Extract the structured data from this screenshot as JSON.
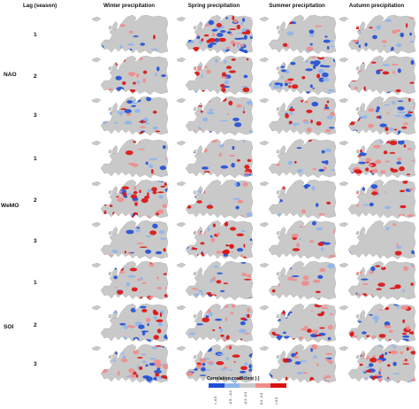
{
  "lag_header": "Lag (season)",
  "columns": [
    "Winter precipitation",
    "Spring precipitation",
    "Summer precipitation",
    "Autumn precipitation"
  ],
  "groups": [
    {
      "label": "NAO",
      "lags": [
        "1",
        "2",
        "3"
      ]
    },
    {
      "label": "WeMO",
      "lags": [
        "1",
        "2",
        "3"
      ]
    },
    {
      "label": "SOI",
      "lags": [
        "1",
        "2",
        "3"
      ]
    }
  ],
  "legend": {
    "title": "Correlation coefficient [-]",
    "ticks": [
      "< -0.5",
      "-0.5 - -0.3",
      "-0.3 - 0.3",
      "0.3 - 0.5",
      "> 0.5"
    ]
  },
  "colors": {
    "land": "#c9c9c9",
    "strong_negative": "#1f4fd6",
    "moderate_negative": "#8fb4ec",
    "neutral": "#c9c9c9",
    "moderate_positive": "#f08c8c",
    "strong_positive": "#dd1111"
  },
  "maps": [
    [
      {
        "neg": 10,
        "pos": 6
      },
      {
        "neg": 38,
        "pos": 28
      },
      {
        "neg": 14,
        "pos": 6
      },
      {
        "neg": 18,
        "pos": 10
      }
    ],
    [
      {
        "neg": 8,
        "pos": 12
      },
      {
        "neg": 14,
        "pos": 16
      },
      {
        "neg": 36,
        "pos": 10
      },
      {
        "neg": 6,
        "pos": 14
      }
    ],
    [
      {
        "neg": 26,
        "pos": 8
      },
      {
        "neg": 16,
        "pos": 12
      },
      {
        "neg": 14,
        "pos": 18
      },
      {
        "neg": 30,
        "pos": 18
      }
    ],
    [
      {
        "neg": 6,
        "pos": 10
      },
      {
        "neg": 14,
        "pos": 12
      },
      {
        "neg": 10,
        "pos": 6
      },
      {
        "neg": 10,
        "pos": 40
      }
    ],
    [
      {
        "neg": 12,
        "pos": 36
      },
      {
        "neg": 10,
        "pos": 8
      },
      {
        "neg": 8,
        "pos": 6
      },
      {
        "neg": 10,
        "pos": 14
      }
    ],
    [
      {
        "neg": 18,
        "pos": 8
      },
      {
        "neg": 14,
        "pos": 32
      },
      {
        "neg": 10,
        "pos": 10
      },
      {
        "neg": 4,
        "pos": 4
      }
    ],
    [
      {
        "neg": 12,
        "pos": 18
      },
      {
        "neg": 12,
        "pos": 14
      },
      {
        "neg": 8,
        "pos": 14
      },
      {
        "neg": 10,
        "pos": 20
      }
    ],
    [
      {
        "neg": 24,
        "pos": 14
      },
      {
        "neg": 16,
        "pos": 20
      },
      {
        "neg": 14,
        "pos": 26
      },
      {
        "neg": 14,
        "pos": 20
      }
    ],
    [
      {
        "neg": 26,
        "pos": 20
      },
      {
        "neg": 28,
        "pos": 14
      },
      {
        "neg": 14,
        "pos": 24
      },
      {
        "neg": 30,
        "pos": 26
      }
    ]
  ]
}
